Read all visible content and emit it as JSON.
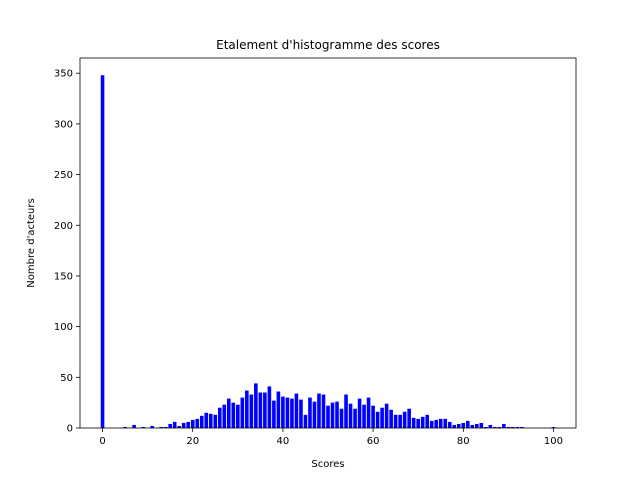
{
  "chart_data": {
    "type": "bar",
    "title": "Etalement d'histogramme des scores",
    "xlabel": "Scores",
    "ylabel": "Nombre d'acteurs",
    "xlim": [
      -5,
      105
    ],
    "ylim": [
      0,
      365
    ],
    "xticks": [
      0,
      20,
      40,
      60,
      80,
      100
    ],
    "yticks": [
      0,
      50,
      100,
      150,
      200,
      250,
      300,
      350
    ],
    "grid": false,
    "bar_color": "#0000ff",
    "x": [
      0,
      1,
      2,
      3,
      4,
      5,
      6,
      7,
      8,
      9,
      10,
      11,
      12,
      13,
      14,
      15,
      16,
      17,
      18,
      19,
      20,
      21,
      22,
      23,
      24,
      25,
      26,
      27,
      28,
      29,
      30,
      31,
      32,
      33,
      34,
      35,
      36,
      37,
      38,
      39,
      40,
      41,
      42,
      43,
      44,
      45,
      46,
      47,
      48,
      49,
      50,
      51,
      52,
      53,
      54,
      55,
      56,
      57,
      58,
      59,
      60,
      61,
      62,
      63,
      64,
      65,
      66,
      67,
      68,
      69,
      70,
      71,
      72,
      73,
      74,
      75,
      76,
      77,
      78,
      79,
      80,
      81,
      82,
      83,
      84,
      85,
      86,
      87,
      88,
      89,
      90,
      91,
      92,
      93,
      94,
      95,
      96,
      97,
      98,
      99,
      100
    ],
    "values": [
      348,
      0,
      0,
      0,
      0,
      1,
      0,
      3,
      0,
      1,
      0,
      2,
      0,
      1,
      1,
      4,
      6,
      2,
      5,
      6,
      8,
      9,
      12,
      15,
      14,
      13,
      20,
      23,
      29,
      25,
      23,
      30,
      37,
      33,
      44,
      35,
      35,
      41,
      27,
      36,
      31,
      30,
      29,
      34,
      28,
      13,
      30,
      26,
      34,
      33,
      22,
      25,
      26,
      19,
      33,
      24,
      19,
      29,
      23,
      30,
      22,
      16,
      20,
      24,
      18,
      13,
      13,
      16,
      19,
      10,
      9,
      11,
      13,
      7,
      8,
      9,
      9,
      6,
      3,
      4,
      5,
      7,
      3,
      4,
      5,
      1,
      3,
      1,
      1,
      4,
      1,
      1,
      1,
      1,
      0,
      0,
      0,
      0,
      0,
      0,
      1
    ]
  }
}
